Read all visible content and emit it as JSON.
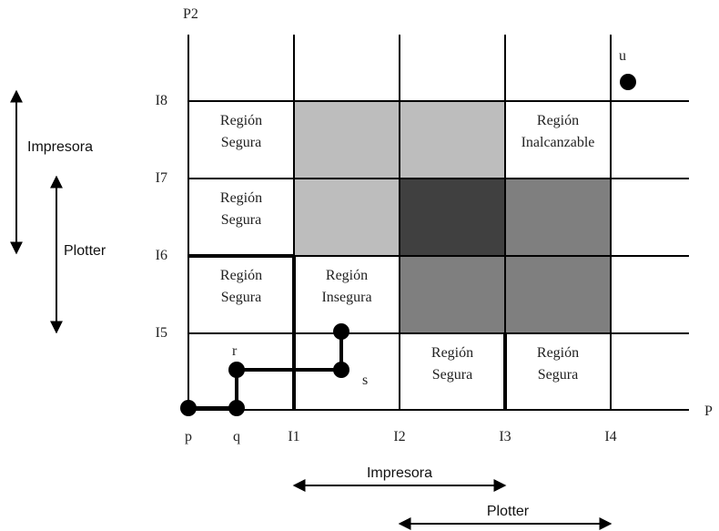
{
  "axes": {
    "x_name": "P",
    "y_name": "P2",
    "x_ticks": [
      "p",
      "q",
      "I1",
      "I2",
      "I3",
      "I4"
    ],
    "y_ticks": [
      "I5",
      "I6",
      "I7",
      "I8"
    ]
  },
  "regions": [
    {
      "id": "safe-1",
      "lines": [
        "Región",
        "Segura"
      ]
    },
    {
      "id": "safe-2",
      "lines": [
        "Región",
        "Segura"
      ]
    },
    {
      "id": "safe-3",
      "lines": [
        "Región",
        "Segura"
      ]
    },
    {
      "id": "unsafe",
      "lines": [
        "Región",
        "Insegura"
      ]
    },
    {
      "id": "unreachable",
      "lines": [
        "Región",
        "Inalcanzable"
      ]
    },
    {
      "id": "safe-4",
      "lines": [
        "Región",
        "Segura"
      ]
    },
    {
      "id": "safe-5",
      "lines": [
        "Región",
        "Segura"
      ]
    }
  ],
  "points": {
    "r": "r",
    "s": "s",
    "u": "u"
  },
  "resources": {
    "printer": "Impresora",
    "plotter": "Plotter"
  },
  "colors": {
    "light_gray": "#bdbdbd",
    "mid_gray": "#7f7f7f",
    "dark_gray": "#404040",
    "line": "#000000"
  }
}
